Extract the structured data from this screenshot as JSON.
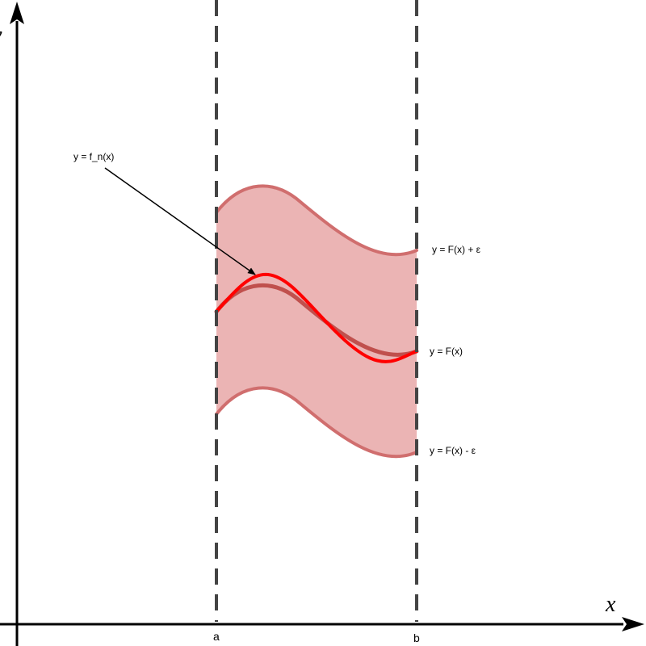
{
  "axes": {
    "x_label": "x",
    "y_label": "y"
  },
  "interval": {
    "left_label": "a",
    "right_label": "b"
  },
  "curves": {
    "fn_label": "y = f_n(x)",
    "F_label": "y = F(x)",
    "upper_label": "y = F(x) + ε",
    "lower_label": "y = F(x) - ε"
  },
  "colors": {
    "band_fill": "#ebb4b4",
    "band_edge": "#d06e6e",
    "F_curve": "#c0504d",
    "fn_curve": "#ff0000",
    "dashed_lines": "#444444",
    "axes": "#000000"
  }
}
